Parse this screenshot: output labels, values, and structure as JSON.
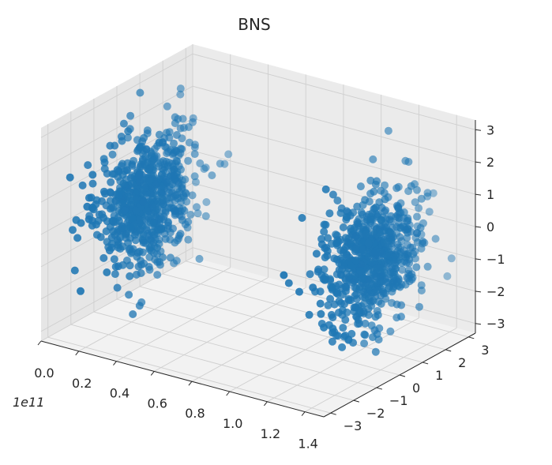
{
  "chart_data": {
    "type": "scatter",
    "projection": "3d",
    "title": "BNS",
    "xlabel": "",
    "ylabel": "",
    "zlabel": "",
    "x_offset_label": "1e11",
    "x_ticks": [
      "0.0",
      "0.2",
      "0.4",
      "0.6",
      "0.8",
      "1.0",
      "1.2",
      "1.4"
    ],
    "y_ticks": [
      "−3",
      "−2",
      "−1",
      "0",
      "1",
      "2",
      "3"
    ],
    "z_ticks": [
      "−3",
      "−2",
      "−1",
      "0",
      "1",
      "2",
      "3"
    ],
    "xlim": [
      0,
      1.5
    ],
    "ylim": [
      -3.3,
      3.3
    ],
    "zlim": [
      -3.3,
      3.3
    ],
    "grid": true,
    "marker_color": "#1f77b4",
    "pane_color": "#f2f2f2",
    "clusters": [
      {
        "x_center": 0.15,
        "y_center": 0.0,
        "z_center": 0.0,
        "x_spread": 0.05,
        "y_spread": 1.0,
        "z_spread": 1.0,
        "count": 700
      },
      {
        "x_center": 1.35,
        "y_center": 0.0,
        "z_center": 0.0,
        "x_spread": 0.05,
        "y_spread": 1.0,
        "z_spread": 1.0,
        "count": 700
      }
    ]
  }
}
